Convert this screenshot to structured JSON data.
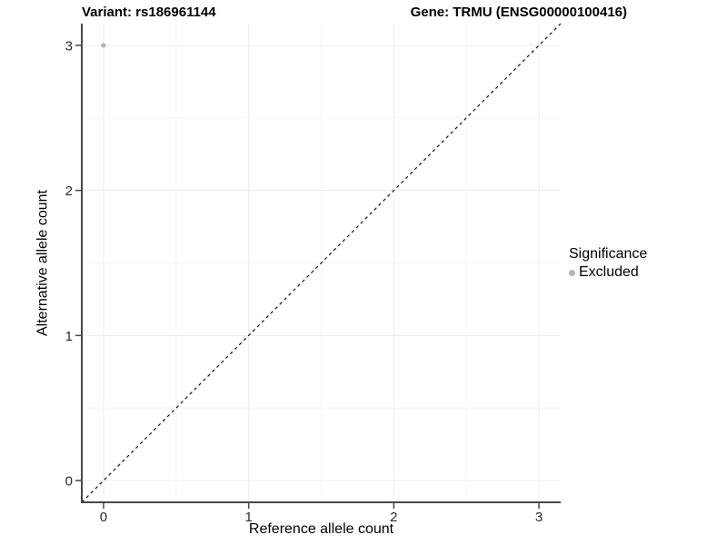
{
  "header": {
    "title_left": "Variant: rs186961144",
    "title_right": "Gene: TRMU (ENSG00000100416)"
  },
  "chart_data": {
    "type": "scatter",
    "title": "Variant: rs186961144   Gene: TRMU (ENSG00000100416)",
    "xlabel": "Reference allele count",
    "ylabel": "Alternative allele count",
    "xlim": [
      -0.15,
      3.15
    ],
    "ylim": [
      -0.15,
      3.15
    ],
    "xticks": [
      0,
      1,
      2,
      3
    ],
    "yticks": [
      0,
      1,
      2,
      3
    ],
    "minor_ticks_x": [
      0.5,
      1.5,
      2.5
    ],
    "minor_ticks_y": [
      0.5,
      1.5,
      2.5
    ],
    "grid": true,
    "points": [
      {
        "x": 0,
        "y": 3,
        "series": "Excluded"
      }
    ],
    "series": [
      {
        "name": "Excluded",
        "color": "#b3b3b3"
      }
    ],
    "reference_line": {
      "type": "diagonal-identity",
      "style": "dashed",
      "color": "#111111"
    },
    "legend": {
      "title": "Significance",
      "position": "right",
      "entries": [
        {
          "label": "Excluded",
          "color": "#b3b3b3"
        }
      ]
    },
    "colors": {
      "background": "#ffffff",
      "axis_line": "#474747",
      "tick_label": "#2b2b2b",
      "grid_major": "#ececec",
      "grid_minor": "#f6f6f6"
    }
  }
}
